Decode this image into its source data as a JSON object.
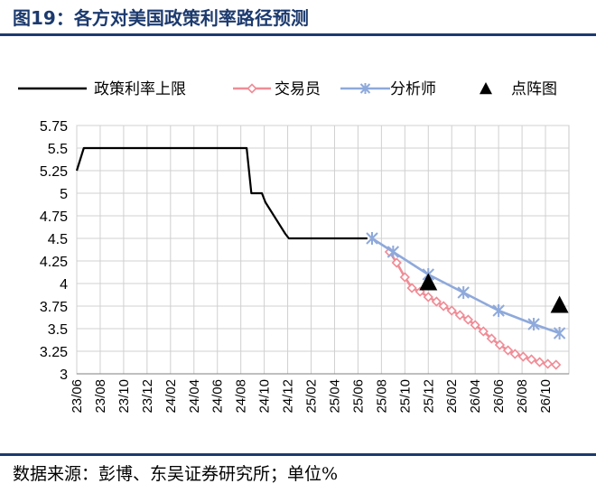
{
  "title": "图19：各方对美国政策利率路径预测",
  "source": "数据来源：彭博、东吴证券研究所；单位%",
  "chart_data": {
    "type": "line",
    "title": "图19：各方对美国政策利率路径预测",
    "xlabel": "",
    "ylabel": "",
    "ylim": [
      3,
      5.75
    ],
    "y_ticks": [
      3,
      3.25,
      3.5,
      3.75,
      4,
      4.25,
      4.5,
      4.75,
      5,
      5.25,
      5.5,
      5.75
    ],
    "y_tick_labels": [
      "3",
      "3.25",
      "3.5",
      "3.75",
      "4",
      "4.25",
      "4.5",
      "4.75",
      "5",
      "5.25",
      "5.5",
      "5.75"
    ],
    "x_tick_labels": [
      "23/06",
      "23/08",
      "23/10",
      "23/12",
      "24/02",
      "24/04",
      "24/06",
      "24/08",
      "24/10",
      "24/12",
      "25/02",
      "25/04",
      "25/06",
      "25/08",
      "25/10",
      "25/12",
      "26/02",
      "26/04",
      "26/06",
      "26/08",
      "26/10"
    ],
    "x_tick_months": [
      0,
      2,
      4,
      6,
      8,
      10,
      12,
      14,
      16,
      18,
      20,
      22,
      24,
      26,
      28,
      30,
      32,
      34,
      36,
      38,
      40
    ],
    "x_range_months": [
      0,
      42
    ],
    "grid": true,
    "legend_position": "top",
    "series": [
      {
        "name": "政策利率上限",
        "color": "#000000",
        "marker": "none",
        "x_months": [
          0,
          0.6,
          7.2,
          14.5,
          14.9,
          15.8,
          16.1,
          17.8,
          18.1,
          24.8
        ],
        "values": [
          5.25,
          5.5,
          5.5,
          5.5,
          5.0,
          5.0,
          4.9,
          4.55,
          4.5,
          4.5
        ]
      },
      {
        "name": "交易员",
        "color": "#f08c96",
        "marker": "diamond",
        "x_months": [
          26.7,
          27.3,
          28.0,
          28.6,
          29.3,
          30.0,
          30.7,
          31.3,
          32.0,
          32.7,
          33.4,
          34.0,
          34.7,
          35.4,
          36.1,
          36.8,
          37.4,
          38.1,
          38.8,
          39.5,
          40.2,
          40.9
        ],
        "values": [
          4.35,
          4.23,
          4.07,
          3.95,
          3.91,
          3.85,
          3.8,
          3.75,
          3.7,
          3.65,
          3.6,
          3.54,
          3.47,
          3.39,
          3.32,
          3.26,
          3.22,
          3.19,
          3.16,
          3.13,
          3.11,
          3.1
        ]
      },
      {
        "name": "分析师",
        "color": "#8ea9db",
        "marker": "x",
        "x_months": [
          25.2,
          27.0,
          30.0,
          33.0,
          36.0,
          39.0,
          41.2
        ],
        "values": [
          4.5,
          4.35,
          4.1,
          3.9,
          3.7,
          3.55,
          3.45
        ]
      },
      {
        "name": "点阵图",
        "color": "#000000",
        "marker": "triangle",
        "x_months": [
          30.0,
          41.2
        ],
        "values": [
          4.0,
          3.75
        ]
      }
    ]
  }
}
